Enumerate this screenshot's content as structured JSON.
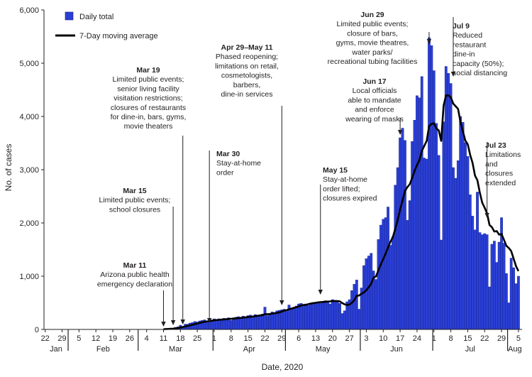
{
  "chart_data": {
    "type": "bar",
    "title": "",
    "xlabel": "Date, 2020",
    "ylabel": "No. of cases",
    "ylim": [
      0,
      6000
    ],
    "yticks": [
      "0",
      "1,000",
      "2,000",
      "3,000",
      "4,000",
      "5,000",
      "6,000"
    ],
    "x_start": "2020-01-22",
    "x_end": "2020-08-07",
    "xtick_labels": [
      "22",
      "29",
      "5",
      "12",
      "19",
      "26",
      "4",
      "11",
      "18",
      "25",
      "1",
      "8",
      "15",
      "22",
      "29",
      "6",
      "13",
      "20",
      "27",
      "3",
      "10",
      "17",
      "24",
      "1",
      "8",
      "15",
      "22",
      "29",
      "5"
    ],
    "months": [
      "Jan",
      "Feb",
      "Mar",
      "Apr",
      "May",
      "Jun",
      "Jul",
      "Aug"
    ],
    "colors": {
      "bars": "#2b3fd6",
      "bar_edge": "#0b1a7a",
      "line": "#000000"
    },
    "series": [
      {
        "name": "Daily total",
        "type": "bar",
        "start_date": "2020-03-11",
        "values": [
          5,
          8,
          12,
          20,
          20,
          40,
          50,
          80,
          60,
          100,
          100,
          120,
          130,
          150,
          140,
          160,
          170,
          180,
          160,
          170,
          180,
          200,
          190,
          200,
          180,
          210,
          200,
          220,
          170,
          220,
          230,
          240,
          230,
          250,
          240,
          260,
          270,
          250,
          280,
          260,
          270,
          290,
          420,
          260,
          300,
          330,
          320,
          350,
          360,
          370,
          380,
          340,
          460,
          390,
          420,
          440,
          480,
          490,
          470,
          480,
          450,
          470,
          490,
          500,
          520,
          490,
          510,
          540,
          510,
          480,
          560,
          520,
          540,
          490,
          300,
          350,
          520,
          560,
          730,
          850,
          930,
          380,
          780,
          1200,
          1330,
          1380,
          1430,
          1100,
          940,
          1690,
          1960,
          2070,
          2100,
          2300,
          1580,
          1740,
          2710,
          3040,
          3600,
          3780,
          3550,
          2050,
          2420,
          3530,
          3930,
          4390,
          4350,
          4750,
          3220,
          3200,
          5480,
          5330,
          4860,
          3870,
          3270,
          1680,
          3900,
          4940,
          4810,
          4620,
          3040,
          2840,
          3170,
          4000,
          3890,
          3510,
          3250,
          2530,
          2130,
          1870,
          2580,
          1820,
          1780,
          1800,
          1780,
          800,
          1600,
          1660,
          1260,
          1640,
          2100,
          1620,
          1050,
          500,
          1340,
          1160,
          860,
          1000
        ],
        "max_value": 5480
      },
      {
        "name": "7-Day moving average",
        "type": "line",
        "start_date": "2020-03-11",
        "values": [
          5,
          7,
          9,
          12,
          15,
          20,
          27,
          36,
          45,
          55,
          65,
          76,
          88,
          100,
          111,
          122,
          133,
          144,
          150,
          156,
          163,
          170,
          176,
          181,
          184,
          188,
          192,
          197,
          199,
          203,
          208,
          213,
          216,
          222,
          226,
          232,
          238,
          243,
          250,
          256,
          262,
          268,
          287,
          286,
          290,
          297,
          303,
          311,
          319,
          336,
          353,
          360,
          380,
          392,
          404,
          417,
          434,
          448,
          460,
          461,
          475,
          486,
          494,
          500,
          508,
          512,
          516,
          521,
          524,
          526,
          532,
          535,
          532,
          528,
          496,
          472,
          459,
          467,
          500,
          549,
          631,
          637,
          669,
          695,
          737,
          792,
          857,
          974,
          994,
          1112,
          1221,
          1320,
          1424,
          1541,
          1649,
          1736,
          1892,
          2055,
          2254,
          2420,
          2599,
          2672,
          2728,
          2848,
          2978,
          3087,
          3182,
          3350,
          3447,
          3541,
          3817,
          3860,
          3872,
          3774,
          3738,
          3541,
          4202,
          4394,
          4396,
          4358,
          4240,
          4191,
          4140,
          3891,
          3721,
          3548,
          3477,
          3279,
          3127,
          2890,
          2801,
          2569,
          2379,
          2286,
          2181,
          1963,
          1921,
          1838,
          1847,
          1780,
          1792,
          1683,
          1570,
          1530,
          1471,
          1329,
          1188,
          1096
        ]
      }
    ],
    "legend": {
      "placement": "top-left",
      "entries": [
        "Daily total",
        "7-Day moving average"
      ]
    },
    "annotations": [
      {
        "date": "Mar 11",
        "text": [
          "Arizona public health",
          "emergency declaration"
        ]
      },
      {
        "date": "Mar 15",
        "text": [
          "Limited public events;",
          "school closures"
        ]
      },
      {
        "date": "Mar 19",
        "text": [
          "Limited public events;",
          "senior living facility",
          "visitation restrictions;",
          "closures of restaurants",
          "for dine-in, bars, gyms,",
          "movie theaters"
        ]
      },
      {
        "date": "Mar 30",
        "text": [
          "Stay-at-home",
          "order"
        ]
      },
      {
        "date": "Apr 29–May 11",
        "text": [
          "Phased reopening;",
          "limitations on retail,",
          "cosmetologists,",
          "barbers,",
          "dine-in services"
        ]
      },
      {
        "date": "May 15",
        "text": [
          "Stay-at-home",
          "order lifted;",
          "closures expired"
        ]
      },
      {
        "date": "Jun 17",
        "text": [
          "Local officials",
          "able to mandate",
          "and enforce",
          "wearing of masks"
        ]
      },
      {
        "date": "Jun 29",
        "text": [
          "Limited public events;",
          "closure of bars,",
          "gyms, movie theatres,",
          "water parks/",
          "recreational tubing facilities"
        ]
      },
      {
        "date": "Jul 9",
        "text": [
          "Reduced",
          "restaurant",
          "dine-in",
          "capacity (50%);",
          "social distancing"
        ]
      },
      {
        "date": "Jul 23",
        "text": [
          "Limitations",
          "and",
          "closures",
          "extended"
        ]
      }
    ]
  }
}
